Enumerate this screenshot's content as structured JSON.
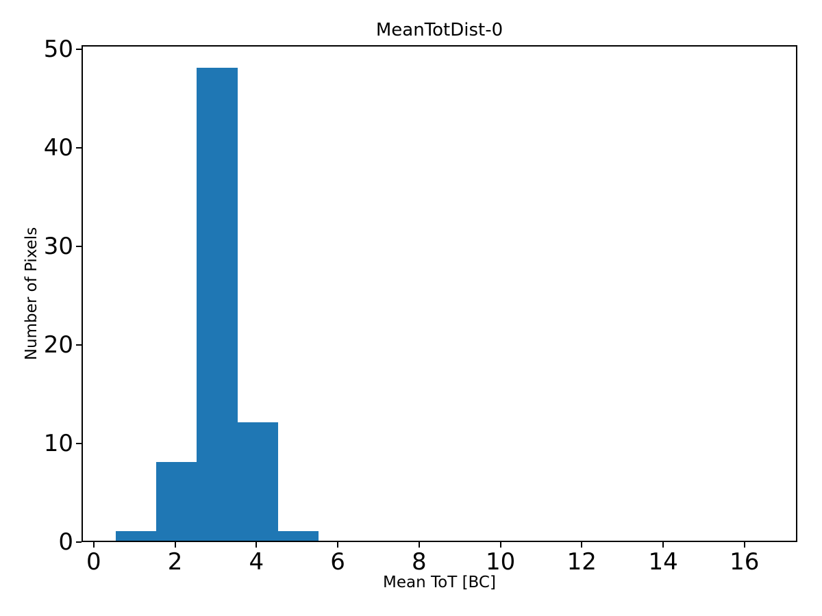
{
  "chart_data": {
    "type": "bar",
    "subtype": "histogram",
    "title": "MeanTotDist-0",
    "xlabel": "Mean ToT [BC]",
    "ylabel": "Number of Pixels",
    "bin_edges": [
      0.5,
      1.5,
      2.5,
      3.5,
      4.5,
      5.5
    ],
    "counts": [
      1,
      8,
      48,
      12,
      1
    ],
    "xticks": [
      0,
      2,
      4,
      6,
      8,
      10,
      12,
      14,
      16
    ],
    "yticks": [
      0,
      10,
      20,
      30,
      40,
      50
    ],
    "xlim": [
      -0.3,
      17.3
    ],
    "ylim": [
      0,
      50.4
    ],
    "bar_color": "#1f77b4",
    "background_color": "#ffffff",
    "spine_color": "#000000",
    "grid": false,
    "legend": false
  }
}
